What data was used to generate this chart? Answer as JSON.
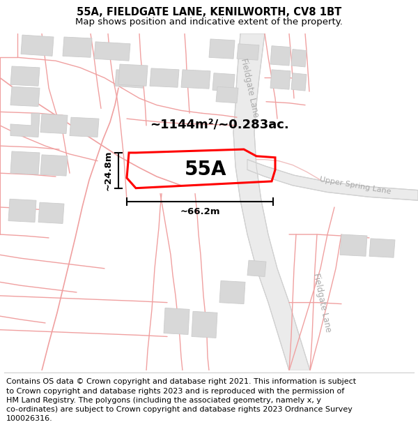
{
  "title": "55A, FIELDGATE LANE, KENILWORTH, CV8 1BT",
  "subtitle": "Map shows position and indicative extent of the property.",
  "footer": "Contains OS data © Crown copyright and database right 2021. This information is subject\nto Crown copyright and database rights 2023 and is reproduced with the permission of\nHM Land Registry. The polygons (including the associated geometry, namely x, y\nco-ordinates) are subject to Crown copyright and database rights 2023 Ordnance Survey\n100026316.",
  "title_fontsize": 10.5,
  "subtitle_fontsize": 9.5,
  "footer_fontsize": 8.0,
  "bg_color": "#ffffff",
  "map_bg": "#ffffff",
  "plot_line_color": "#f0a0a0",
  "road_fill_color": "#e8e8e8",
  "road_line_color": "#c0c0c0",
  "building_color": "#d8d8d8",
  "building_edge": "#cccccc",
  "highlight_color": "#ff0000",
  "label_55A": "55A",
  "area_label": "~1144m²/~0.283ac.",
  "dim_height": "~24.8m",
  "dim_width": "~66.2m",
  "fieldgate_lane_label": "Fieldgate Lane",
  "upper_spring_lane_label": "Upper Spring Lane"
}
